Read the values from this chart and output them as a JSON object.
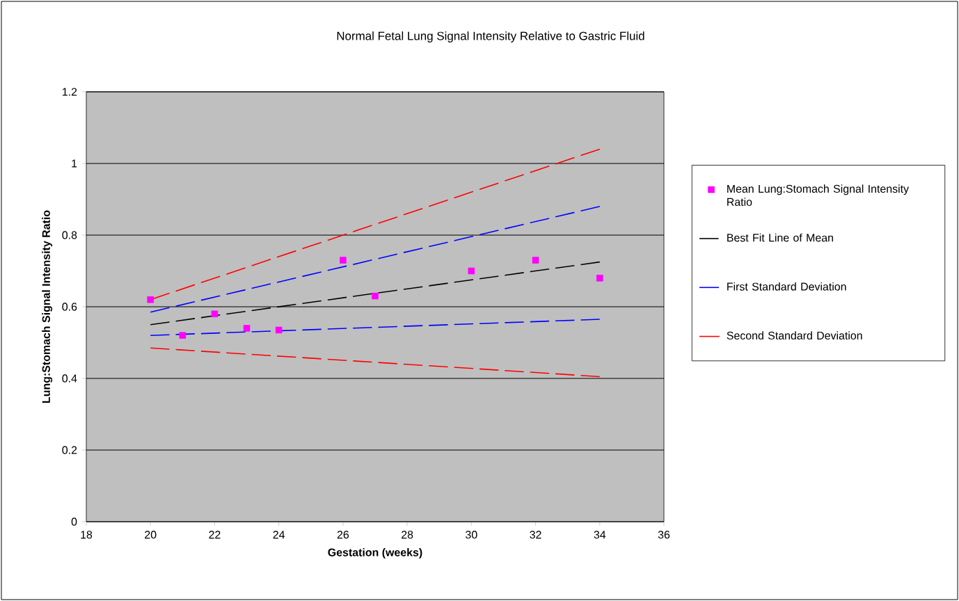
{
  "chart_data": {
    "type": "line",
    "title": "Normal Fetal Lung Signal Intensity Relative to Gastric Fluid",
    "xlabel": "Gestation (weeks)",
    "ylabel": "Lung:Stomach Signal Intensity Ratio",
    "xlim": [
      18,
      36
    ],
    "xticks": [
      18,
      20,
      22,
      24,
      26,
      28,
      30,
      32,
      34,
      36
    ],
    "ylim": [
      0,
      1.2
    ],
    "yticks": [
      {
        "value": 0,
        "label": "0"
      },
      {
        "value": 0.2,
        "label": "0.2"
      },
      {
        "value": 0.4,
        "label": "0.4"
      },
      {
        "value": 0.6,
        "label": "0.6"
      },
      {
        "value": 0.8,
        "label": "0.8"
      },
      {
        "value": 1,
        "label": "1"
      },
      {
        "value": 1.2,
        "label": "1.2"
      }
    ],
    "grid": "y",
    "legend": "right",
    "series": [
      {
        "name": "Mean Lung:Stomach Signal Intensity Ratio",
        "type": "scatter",
        "marker": "square",
        "color": "#ff00ff",
        "x": [
          20,
          21,
          22,
          23,
          24,
          26,
          27,
          30,
          32,
          34
        ],
        "values": [
          0.62,
          0.52,
          0.58,
          0.54,
          0.535,
          0.73,
          0.63,
          0.7,
          0.73,
          0.68
        ]
      },
      {
        "name": "Best Fit Line of Mean",
        "line_style": "dashed",
        "color": "#000000",
        "x": [
          20,
          34
        ],
        "values": [
          0.55,
          0.725
        ]
      },
      {
        "name": "First Standard Deviation",
        "line_style": "dashed",
        "color": "#0000ff",
        "x": [
          20,
          34
        ],
        "values": [
          0.585,
          0.88
        ]
      },
      {
        "line_style": "dashed",
        "color": "#0000ff",
        "x": [
          20,
          34
        ],
        "values": [
          0.52,
          0.565
        ]
      },
      {
        "name": "Second Standard Deviation",
        "line_style": "dashed",
        "color": "#ff0000",
        "x": [
          20,
          34
        ],
        "values": [
          0.62,
          1.04
        ]
      },
      {
        "line_style": "dashed",
        "color": "#ff0000",
        "x": [
          20,
          34
        ],
        "values": [
          0.485,
          0.405
        ]
      }
    ]
  }
}
